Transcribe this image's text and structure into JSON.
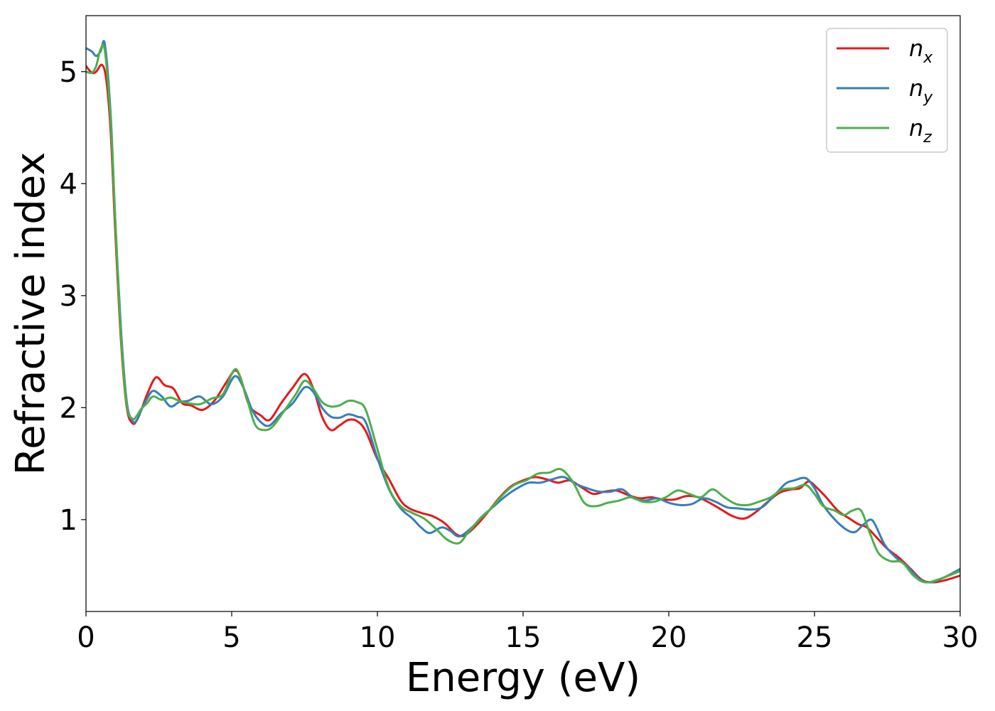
{
  "chart_data": {
    "type": "line",
    "title": "",
    "xlabel": "Energy (eV)",
    "ylabel": "Refractive index",
    "xlim": [
      0,
      30
    ],
    "ylim": [
      0.18,
      5.5
    ],
    "xticks": [
      0,
      5,
      10,
      15,
      20,
      25,
      30
    ],
    "yticks": [
      1,
      2,
      3,
      4,
      5
    ],
    "xtick_labels": [
      "0",
      "5",
      "10",
      "15",
      "20",
      "25",
      "30"
    ],
    "ytick_labels": [
      "1",
      "2",
      "3",
      "4",
      "5"
    ],
    "grid": false,
    "legend_position": "top-right",
    "series": [
      {
        "name": "n_x",
        "legend_main": "n",
        "legend_sub": "x",
        "color": "#e41a1c",
        "x": [
          0,
          0.2,
          0.35,
          0.55,
          0.7,
          0.85,
          1.0,
          1.2,
          1.4,
          1.6,
          1.75,
          1.9,
          2.1,
          2.4,
          2.7,
          3.0,
          3.3,
          3.6,
          4.0,
          4.4,
          4.8,
          5.1,
          5.3,
          5.6,
          6.0,
          6.3,
          6.7,
          7.1,
          7.5,
          7.8,
          8.1,
          8.4,
          8.7,
          9.0,
          9.3,
          9.6,
          10.0,
          10.4,
          10.8,
          11.1,
          11.5,
          11.9,
          12.3,
          12.7,
          13.0,
          13.4,
          13.8,
          14.2,
          14.6,
          15.0,
          15.4,
          15.8,
          16.2,
          16.6,
          17.0,
          17.4,
          17.8,
          18.2,
          18.6,
          19.0,
          19.4,
          19.8,
          20.2,
          20.6,
          21.0,
          21.4,
          21.8,
          22.2,
          22.6,
          23.0,
          23.4,
          23.8,
          24.2,
          24.5,
          24.8,
          25.1,
          25.4,
          25.8,
          26.2,
          26.5,
          26.8,
          27.1,
          27.5,
          27.9,
          28.3,
          28.7,
          29.1,
          29.5,
          30.0
        ],
        "y": [
          5.05,
          4.99,
          5.0,
          5.06,
          4.92,
          4.45,
          3.6,
          2.6,
          2.0,
          1.86,
          1.89,
          1.98,
          2.12,
          2.27,
          2.2,
          2.17,
          2.04,
          2.02,
          1.98,
          2.06,
          2.22,
          2.33,
          2.27,
          2.02,
          1.93,
          1.89,
          2.04,
          2.18,
          2.3,
          2.17,
          1.92,
          1.8,
          1.84,
          1.89,
          1.88,
          1.79,
          1.54,
          1.36,
          1.17,
          1.1,
          1.06,
          1.03,
          0.97,
          0.87,
          0.86,
          0.95,
          1.07,
          1.2,
          1.3,
          1.35,
          1.38,
          1.36,
          1.33,
          1.35,
          1.29,
          1.23,
          1.25,
          1.26,
          1.22,
          1.19,
          1.2,
          1.18,
          1.18,
          1.21,
          1.2,
          1.15,
          1.09,
          1.03,
          1.01,
          1.07,
          1.16,
          1.24,
          1.27,
          1.28,
          1.34,
          1.28,
          1.2,
          1.08,
          1.01,
          0.96,
          0.93,
          0.85,
          0.74,
          0.66,
          0.56,
          0.46,
          0.44,
          0.46,
          0.5
        ]
      },
      {
        "name": "n_y",
        "legend_main": "n",
        "legend_sub": "y",
        "color": "#377eb8",
        "x": [
          0,
          0.2,
          0.35,
          0.5,
          0.65,
          0.85,
          1.0,
          1.2,
          1.4,
          1.6,
          1.75,
          1.9,
          2.1,
          2.3,
          2.6,
          2.9,
          3.2,
          3.5,
          3.9,
          4.3,
          4.7,
          5.1,
          5.4,
          5.7,
          6.0,
          6.3,
          6.7,
          7.1,
          7.5,
          7.8,
          8.1,
          8.4,
          8.7,
          9.0,
          9.3,
          9.6,
          10.0,
          10.4,
          10.8,
          11.2,
          11.5,
          11.8,
          12.2,
          12.5,
          12.8,
          13.2,
          13.6,
          14.0,
          14.4,
          14.8,
          15.2,
          15.6,
          16.0,
          16.4,
          16.8,
          17.2,
          17.6,
          18.0,
          18.4,
          18.8,
          19.2,
          19.6,
          20.0,
          20.4,
          20.8,
          21.2,
          21.6,
          22.0,
          22.4,
          22.8,
          23.2,
          23.6,
          24.0,
          24.3,
          24.7,
          25.0,
          25.3,
          25.7,
          26.1,
          26.4,
          26.7,
          27.0,
          27.4,
          27.8,
          28.2,
          28.6,
          29.0,
          29.5,
          30.0
        ],
        "y": [
          5.21,
          5.18,
          5.14,
          5.18,
          5.24,
          4.6,
          3.7,
          2.7,
          2.05,
          1.88,
          1.89,
          1.98,
          2.08,
          2.15,
          2.1,
          2.01,
          2.05,
          2.06,
          2.1,
          2.03,
          2.1,
          2.28,
          2.18,
          1.98,
          1.87,
          1.84,
          1.95,
          2.04,
          2.18,
          2.14,
          2.0,
          1.92,
          1.91,
          1.94,
          1.92,
          1.87,
          1.55,
          1.27,
          1.1,
          1.01,
          0.93,
          0.88,
          0.93,
          0.9,
          0.85,
          0.92,
          1.03,
          1.12,
          1.21,
          1.28,
          1.33,
          1.33,
          1.36,
          1.38,
          1.32,
          1.28,
          1.25,
          1.25,
          1.27,
          1.19,
          1.17,
          1.19,
          1.15,
          1.13,
          1.14,
          1.19,
          1.16,
          1.11,
          1.1,
          1.09,
          1.11,
          1.21,
          1.32,
          1.35,
          1.37,
          1.28,
          1.13,
          1.0,
          0.91,
          0.89,
          0.96,
          0.99,
          0.78,
          0.66,
          0.58,
          0.47,
          0.44,
          0.49,
          0.56
        ]
      },
      {
        "name": "n_z",
        "legend_main": "n",
        "legend_sub": "z",
        "color": "#4daf4a",
        "x": [
          0,
          0.2,
          0.35,
          0.5,
          0.65,
          0.85,
          1.0,
          1.2,
          1.4,
          1.6,
          1.75,
          1.9,
          2.1,
          2.3,
          2.6,
          2.9,
          3.2,
          3.5,
          3.9,
          4.3,
          4.7,
          5.0,
          5.2,
          5.5,
          5.8,
          6.1,
          6.4,
          6.8,
          7.2,
          7.5,
          7.8,
          8.1,
          8.4,
          8.7,
          9.0,
          9.3,
          9.6,
          10.0,
          10.4,
          10.8,
          11.2,
          11.6,
          12.0,
          12.4,
          12.8,
          13.1,
          13.5,
          13.9,
          14.3,
          14.7,
          15.1,
          15.5,
          15.9,
          16.3,
          16.7,
          17.1,
          17.5,
          17.9,
          18.3,
          18.7,
          19.1,
          19.5,
          19.9,
          20.3,
          20.7,
          21.1,
          21.5,
          21.9,
          22.3,
          22.7,
          23.1,
          23.5,
          23.9,
          24.3,
          24.7,
          25.0,
          25.3,
          25.7,
          26.0,
          26.3,
          26.6,
          26.9,
          27.2,
          27.6,
          28.0,
          28.4,
          28.8,
          29.3,
          30.0
        ],
        "y": [
          5.0,
          4.99,
          5.05,
          5.2,
          5.18,
          4.55,
          3.7,
          2.65,
          2.02,
          1.9,
          1.93,
          1.99,
          2.04,
          2.1,
          2.07,
          2.09,
          2.06,
          2.04,
          2.03,
          2.08,
          2.12,
          2.3,
          2.33,
          2.1,
          1.85,
          1.8,
          1.83,
          1.97,
          2.12,
          2.24,
          2.17,
          2.05,
          2.01,
          2.02,
          2.06,
          2.05,
          1.98,
          1.63,
          1.28,
          1.12,
          1.06,
          1.01,
          0.92,
          0.82,
          0.79,
          0.88,
          1.0,
          1.1,
          1.22,
          1.31,
          1.35,
          1.41,
          1.42,
          1.45,
          1.34,
          1.15,
          1.12,
          1.15,
          1.17,
          1.2,
          1.16,
          1.16,
          1.2,
          1.26,
          1.23,
          1.2,
          1.27,
          1.2,
          1.14,
          1.13,
          1.16,
          1.2,
          1.27,
          1.28,
          1.31,
          1.23,
          1.12,
          1.08,
          1.04,
          1.08,
          1.08,
          0.88,
          0.7,
          0.63,
          0.62,
          0.5,
          0.44,
          0.47,
          0.54
        ]
      }
    ]
  }
}
